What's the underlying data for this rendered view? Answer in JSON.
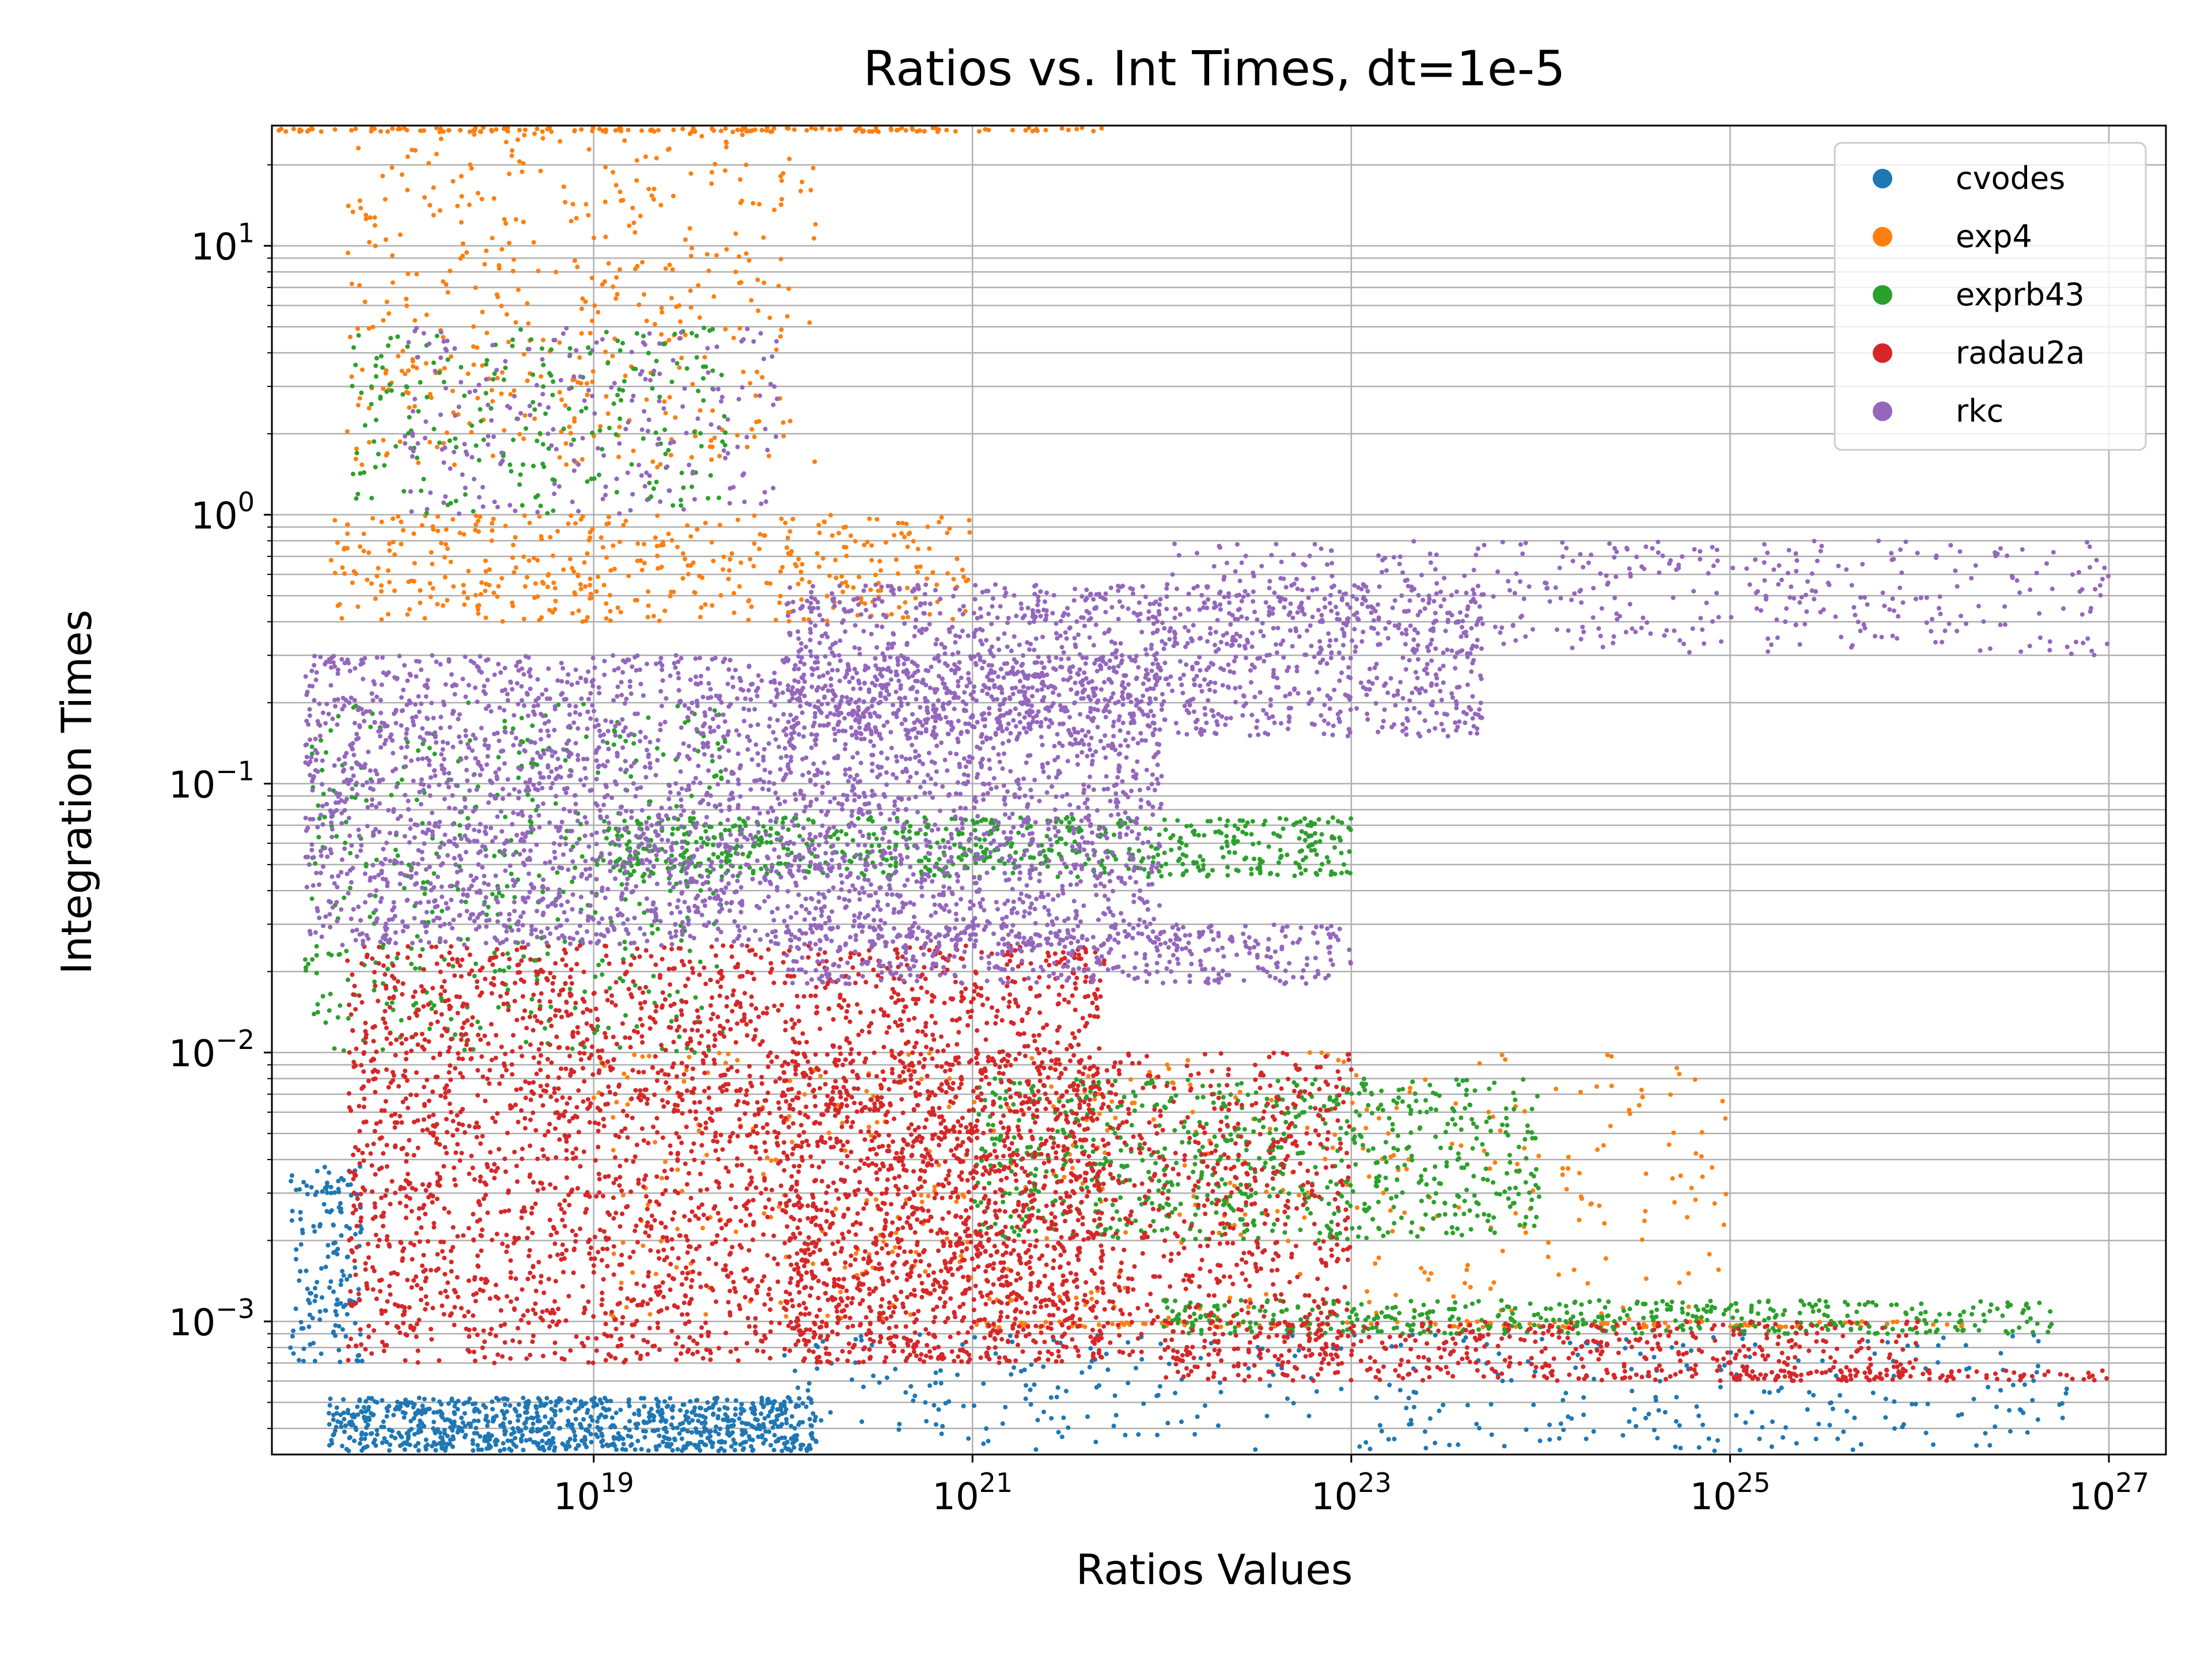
{
  "chart_data": {
    "type": "scatter",
    "title": "Ratios vs. Int Times, dt=1e-5",
    "xlabel": "Ratios Values",
    "ylabel": "Integration Times",
    "x_scale": "log",
    "y_scale": "log",
    "xlim": [
      2e+17,
      2e+27
    ],
    "ylim": [
      0.00032,
      28
    ],
    "grid": true,
    "legend_position": "top-right",
    "x_ticks": [
      {
        "value": 1e+19,
        "base": "10",
        "exp": "19"
      },
      {
        "value": 1e+21,
        "base": "10",
        "exp": "21"
      },
      {
        "value": 1e+23,
        "base": "10",
        "exp": "23"
      },
      {
        "value": 1e+25,
        "base": "10",
        "exp": "25"
      },
      {
        "value": 1e+27,
        "base": "10",
        "exp": "27"
      }
    ],
    "y_ticks": [
      {
        "value": 0.001,
        "base": "10",
        "exp": "−3"
      },
      {
        "value": 0.01,
        "base": "10",
        "exp": "−2"
      },
      {
        "value": 0.1,
        "base": "10",
        "exp": "−1"
      },
      {
        "value": 1,
        "base": "10",
        "exp": "0"
      },
      {
        "value": 10,
        "base": "10",
        "exp": "1"
      }
    ],
    "y_gridlines": [
      0.0004,
      0.0005,
      0.0006,
      0.0007,
      0.0008,
      0.0009,
      0.001,
      0.002,
      0.003,
      0.004,
      0.005,
      0.006,
      0.007,
      0.008,
      0.009,
      0.01,
      0.02,
      0.03,
      0.04,
      0.05,
      0.06,
      0.07,
      0.08,
      0.09,
      0.1,
      0.2,
      0.3,
      0.4,
      0.5,
      0.6,
      0.7,
      0.8,
      0.9,
      1,
      2,
      3,
      4,
      5,
      6,
      7,
      8,
      9,
      10,
      20
    ],
    "series": [
      {
        "name": "cvodes",
        "color": "#1f77b4",
        "regions": [
          {
            "x": [
              4e+17,
              1.5e+20
            ],
            "y": [
              0.00033,
              0.00052
            ],
            "n": 900
          },
          {
            "x": [
              2.5e+17,
              6e+17
            ],
            "y": [
              0.0007,
              0.0038
            ],
            "n": 160
          },
          {
            "x": [
              1e+20,
              6e+26
            ],
            "y": [
              0.00033,
              0.0009
            ],
            "n": 380
          }
        ]
      },
      {
        "name": "exp4",
        "color": "#ff7f0e",
        "regions": [
          {
            "x": [
              5e+17,
              1.5e+20
            ],
            "y": [
              1.5,
              27
            ],
            "n": 420
          },
          {
            "x": [
              4e+17,
              1e+21
            ],
            "y": [
              0.4,
              1.0
            ],
            "n": 420
          },
          {
            "x": [
              2e+17,
              5e+21
            ],
            "y": [
              26.5,
              27.5
            ],
            "n": 160
          },
          {
            "x": [
              1e+19,
              1e+25
            ],
            "y": [
              0.001,
              0.01
            ],
            "n": 420
          },
          {
            "x": [
              1e+21,
              2e+26
            ],
            "y": [
              0.00095,
              0.001
            ],
            "n": 120
          }
        ]
      },
      {
        "name": "exprb43",
        "color": "#2ca02c",
        "regions": [
          {
            "x": [
              3e+17,
              5e+19
            ],
            "y": [
              0.01,
              0.2
            ],
            "n": 450
          },
          {
            "x": [
              1e+19,
              1e+23
            ],
            "y": [
              0.045,
              0.075
            ],
            "n": 650
          },
          {
            "x": [
              1e+21,
              1e+24
            ],
            "y": [
              0.002,
              0.008
            ],
            "n": 750
          },
          {
            "x": [
              1e+22,
              5e+26
            ],
            "y": [
              0.0009,
              0.0012
            ],
            "n": 450
          },
          {
            "x": [
              5e+17,
              5e+19
            ],
            "y": [
              1.0,
              5.0
            ],
            "n": 220
          }
        ]
      },
      {
        "name": "radau2a",
        "color": "#d62728",
        "regions": [
          {
            "x": [
              5e+17,
              5e+21
            ],
            "y": [
              0.0007,
              0.025
            ],
            "n": 3200
          },
          {
            "x": [
              1e+20,
              1e+23
            ],
            "y": [
              0.0007,
              0.01
            ],
            "n": 1300
          },
          {
            "x": [
              1e+22,
              1e+26
            ],
            "y": [
              0.0006,
              0.001
            ],
            "n": 500
          },
          {
            "x": [
              1e+25,
              1e+27
            ],
            "y": [
              0.0006,
              0.00066
            ],
            "n": 90
          }
        ]
      },
      {
        "name": "rkc",
        "color": "#9467bd",
        "regions": [
          {
            "x": [
              3e+17,
              1e+22
            ],
            "y": [
              0.025,
              0.3
            ],
            "n": 3200
          },
          {
            "x": [
              1e+20,
              5e+23
            ],
            "y": [
              0.15,
              0.55
            ],
            "n": 1300
          },
          {
            "x": [
              1e+22,
              1e+27
            ],
            "y": [
              0.3,
              0.8
            ],
            "n": 450
          },
          {
            "x": [
              1e+20,
              1e+23
            ],
            "y": [
              0.018,
              0.03
            ],
            "n": 450
          },
          {
            "x": [
              1e+18,
              1e+20
            ],
            "y": [
              1.0,
              5.0
            ],
            "n": 220
          }
        ]
      }
    ]
  }
}
